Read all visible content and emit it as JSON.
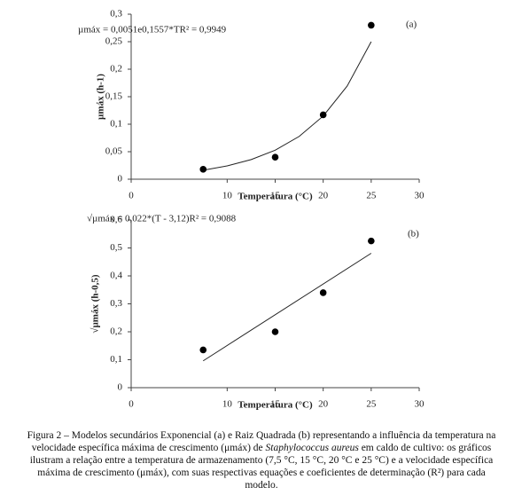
{
  "chart_data": [
    {
      "type": "scatter",
      "panel": "(a)",
      "equation": "µmáx = 0,0051e0,1557*TR² = 0,9949",
      "x_label": "Temperatura (°C)",
      "y_label": "µmáx (h-1)",
      "x": [
        7.5,
        15,
        20,
        25
      ],
      "values": [
        0.018,
        0.04,
        0.117,
        0.28
      ],
      "color": "#000000",
      "fit_x": [
        7.5,
        10,
        12.5,
        15,
        17.5,
        20,
        22.5,
        25
      ],
      "fit_values": [
        0.0164,
        0.0242,
        0.0357,
        0.0527,
        0.0778,
        0.1148,
        0.1694,
        0.25
      ],
      "xlim": [
        0,
        30
      ],
      "xticks": [
        0,
        10,
        15,
        20,
        25,
        30
      ],
      "ylim": [
        0,
        0.3
      ],
      "yticks": [
        0,
        {
          "value": 0.05,
          "label": "0,05"
        },
        {
          "value": 0.1,
          "label": "0,1"
        },
        {
          "value": 0.15,
          "label": "0,15"
        },
        {
          "value": 0.2,
          "label": "0,2"
        },
        {
          "value": 0.25,
          "label": "0,25"
        },
        {
          "value": 0.3,
          "label": "0,3"
        }
      ]
    },
    {
      "type": "scatter",
      "panel": "(b)",
      "equation": "√µmáx = 0,022*(T - 3,12)R² = 0,9088",
      "x_label": "Temperatura (°C)",
      "y_label": "√µmáx  (h-0,5)",
      "x": [
        7.5,
        15,
        20,
        25
      ],
      "values": [
        0.135,
        0.2,
        0.34,
        0.525
      ],
      "color": "#000000",
      "fit_x": [
        7.5,
        25
      ],
      "fit_values": [
        0.096,
        0.481
      ],
      "xlim": [
        0,
        30
      ],
      "xticks": [
        0,
        10,
        15,
        20,
        25,
        30
      ],
      "ylim": [
        0,
        0.6
      ],
      "yticks": [
        0,
        {
          "value": 0.1,
          "label": "0,1"
        },
        {
          "value": 0.2,
          "label": "0,2"
        },
        {
          "value": 0.3,
          "label": "0,3"
        },
        {
          "value": 0.4,
          "label": "0,4"
        },
        {
          "value": 0.5,
          "label": "0,5"
        },
        {
          "value": 0.6,
          "label": "0,6"
        }
      ]
    }
  ],
  "caption": {
    "label": "Figura 2 – ",
    "text1": "Modelos secundários Exponencial (a) e Raiz Quadrada (b) representando a influência da temperatura na velocidade específica máxima de crescimento (μmáx) de ",
    "species": "Staphylococcus aureus",
    "text2": " em caldo de cultivo: os gráficos ilustram a relação entre a temperatura de armazenamento (7,5 °C, 15 °C, 20 °C e 25 °C) e a velocidade específica máxima de crescimento (μmáx), com suas respectivas equações e coeficientes de determinação (R²) para cada modelo."
  }
}
